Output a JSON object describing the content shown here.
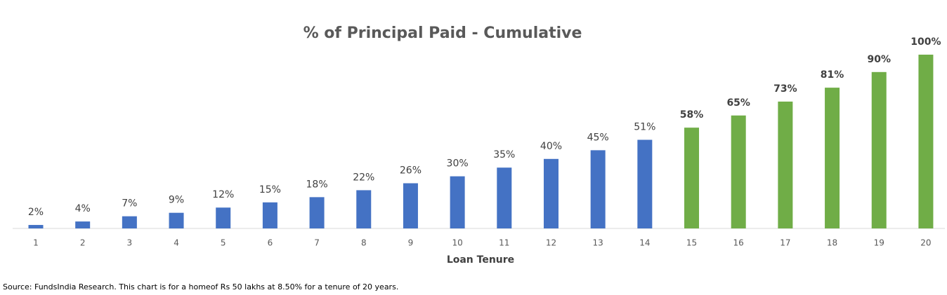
{
  "chart_data": {
    "type": "bar",
    "title": "% of Principal Paid - Cumulative",
    "x_label": "Loan Tenure",
    "source": "Source: FundsIndia Research. This chart is for a homeof Rs 50 lakhs at 8.50% for a tenure of 20 years.",
    "categories": [
      "1",
      "2",
      "3",
      "4",
      "5",
      "6",
      "7",
      "8",
      "9",
      "10",
      "11",
      "12",
      "13",
      "14",
      "15",
      "16",
      "17",
      "18",
      "19",
      "20"
    ],
    "values": [
      2,
      4,
      7,
      9,
      12,
      15,
      18,
      22,
      26,
      30,
      35,
      40,
      45,
      51,
      58,
      65,
      73,
      81,
      90,
      100
    ],
    "value_labels": [
      "2%",
      "4%",
      "7%",
      "9%",
      "12%",
      "15%",
      "18%",
      "22%",
      "26%",
      "30%",
      "35%",
      "40%",
      "45%",
      "51%",
      "58%",
      "65%",
      "73%",
      "81%",
      "90%",
      "100%"
    ],
    "colors": [
      "#4472c4",
      "#4472c4",
      "#4472c4",
      "#4472c4",
      "#4472c4",
      "#4472c4",
      "#4472c4",
      "#4472c4",
      "#4472c4",
      "#4472c4",
      "#4472c4",
      "#4472c4",
      "#4472c4",
      "#4472c4",
      "#70ad47",
      "#70ad47",
      "#70ad47",
      "#70ad47",
      "#70ad47",
      "#70ad47"
    ],
    "bold_labels": [
      false,
      false,
      false,
      false,
      false,
      false,
      false,
      false,
      false,
      false,
      false,
      false,
      false,
      false,
      true,
      true,
      true,
      true,
      true,
      true
    ],
    "ylim": [
      0,
      100
    ]
  }
}
